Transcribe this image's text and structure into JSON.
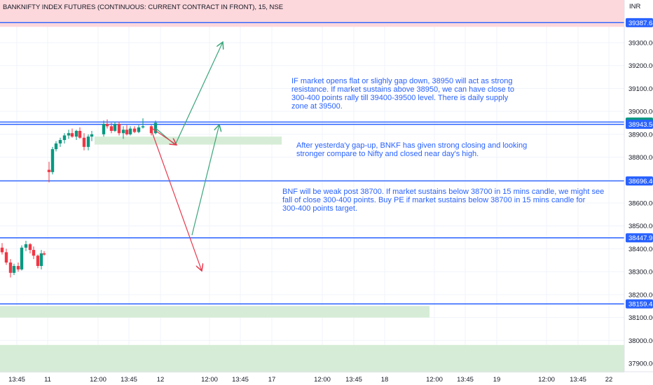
{
  "chart_data": {
    "type": "candlestick",
    "title": "BANKNIFTY INDEX FUTURES (CONTINUOUS: CURRENT CONTRACT IN FRONT), 15, NSE",
    "currency": "INR",
    "ylim": [
      37860,
      39430
    ],
    "y_ticks": [
      "39300.00",
      "39200.00",
      "39100.00",
      "39000.00",
      "38900.00",
      "38800.00",
      "38700.00",
      "38600.00",
      "38500.00",
      "38400.00",
      "38300.00",
      "38200.00",
      "38100.00",
      "38000.00",
      "37900.00"
    ],
    "x_ticks": [
      "13:45",
      "11",
      "12:00",
      "13:45",
      "12",
      "12:00",
      "13:45",
      "17",
      "12:00",
      "13:45",
      "18",
      "12:00",
      "13:45",
      "19",
      "12:00",
      "13:45",
      "22"
    ],
    "colors": {
      "up": "#089981",
      "down": "#f23645",
      "level_line": "#2962ff",
      "zone_fill": "#d6ecd6",
      "supply_zone": "#fcd7dc",
      "up_arrow": "#3aa57a",
      "down_arrow": "#e8394d",
      "annotation_text": "#2962ff"
    },
    "candles": [
      {
        "o": 38405,
        "h": 38425,
        "l": 38375,
        "c": 38385
      },
      {
        "o": 38385,
        "h": 38400,
        "l": 38330,
        "c": 38340
      },
      {
        "o": 38340,
        "h": 38355,
        "l": 38275,
        "c": 38295
      },
      {
        "o": 38295,
        "h": 38335,
        "l": 38285,
        "c": 38325
      },
      {
        "o": 38325,
        "h": 38340,
        "l": 38300,
        "c": 38310
      },
      {
        "o": 38310,
        "h": 38415,
        "l": 38305,
        "c": 38405
      },
      {
        "o": 38405,
        "h": 38435,
        "l": 38390,
        "c": 38420
      },
      {
        "o": 38420,
        "h": 38425,
        "l": 38380,
        "c": 38395
      },
      {
        "o": 38395,
        "h": 38410,
        "l": 38355,
        "c": 38370
      },
      {
        "o": 38370,
        "h": 38375,
        "l": 38315,
        "c": 38325
      },
      {
        "o": 38325,
        "h": 38395,
        "l": 38310,
        "c": 38380
      },
      {
        "o": 38380,
        "h": 38390,
        "l": 38370,
        "c": 38375
      },
      {
        "o": 38745,
        "h": 38780,
        "l": 38690,
        "c": 38735
      },
      {
        "o": 38735,
        "h": 38845,
        "l": 38725,
        "c": 38835
      },
      {
        "o": 38835,
        "h": 38870,
        "l": 38825,
        "c": 38860
      },
      {
        "o": 38860,
        "h": 38885,
        "l": 38845,
        "c": 38875
      },
      {
        "o": 38875,
        "h": 38905,
        "l": 38860,
        "c": 38895
      },
      {
        "o": 38895,
        "h": 38920,
        "l": 38880,
        "c": 38905
      },
      {
        "o": 38905,
        "h": 38925,
        "l": 38885,
        "c": 38890
      },
      {
        "o": 38890,
        "h": 38920,
        "l": 38875,
        "c": 38915
      },
      {
        "o": 38915,
        "h": 38930,
        "l": 38880,
        "c": 38885
      },
      {
        "o": 38885,
        "h": 38905,
        "l": 38830,
        "c": 38845
      },
      {
        "o": 38845,
        "h": 38900,
        "l": 38830,
        "c": 38890
      },
      {
        "o": 38890,
        "h": 38915,
        "l": 38870,
        "c": 38900
      },
      {
        "o": 38900,
        "h": 38960,
        "l": 38890,
        "c": 38945
      },
      {
        "o": 38945,
        "h": 38965,
        "l": 38925,
        "c": 38935
      },
      {
        "o": 38935,
        "h": 38950,
        "l": 38905,
        "c": 38915
      },
      {
        "o": 38915,
        "h": 38955,
        "l": 38910,
        "c": 38945
      },
      {
        "o": 38945,
        "h": 38955,
        "l": 38895,
        "c": 38905
      },
      {
        "o": 38905,
        "h": 38935,
        "l": 38880,
        "c": 38920
      },
      {
        "o": 38920,
        "h": 38940,
        "l": 38895,
        "c": 38900
      },
      {
        "o": 38900,
        "h": 38935,
        "l": 38895,
        "c": 38925
      },
      {
        "o": 38925,
        "h": 38935,
        "l": 38905,
        "c": 38910
      },
      {
        "o": 38910,
        "h": 38940,
        "l": 38905,
        "c": 38930
      },
      {
        "o": 38930,
        "h": 38970,
        "l": 38925,
        "c": 38935
      },
      {
        "o": 38935,
        "h": 38940,
        "l": 38895,
        "c": 38905
      },
      {
        "o": 38905,
        "h": 38960,
        "l": 38900,
        "c": 38950
      }
    ],
    "levels": [
      {
        "price": 39387.65,
        "label": "39387.65"
      },
      {
        "price": 38953.5,
        "label": "38953.50"
      },
      {
        "price": 38943.5,
        "label": "38943.50"
      },
      {
        "price": 38696.4,
        "label": "38696.40"
      },
      {
        "price": 38447.95,
        "label": "38447.95"
      },
      {
        "price": 38159.45,
        "label": "38159.45"
      }
    ],
    "annotations": [
      [
        "IF market opens flat or slighly gap down, 38950 will act as strong",
        "resistance. If market sustains above 38950, we can have close to",
        "300-400 points rally till 39400-39500 level. There is daily supply",
        "zone at 39500."
      ],
      [
        "After yesterda'y gap-up, BNKF has given strong closing and looking",
        "stronger compare to Nifty and closed near day's high."
      ],
      [
        "BNF will be weak post 38700. If market sustains below 38700 in 15 mins candle, we might see",
        "fall of close 300-400 points. Buy PE if market sustains below 38700 in 15 mins candle for",
        "300-400 points target."
      ]
    ]
  }
}
